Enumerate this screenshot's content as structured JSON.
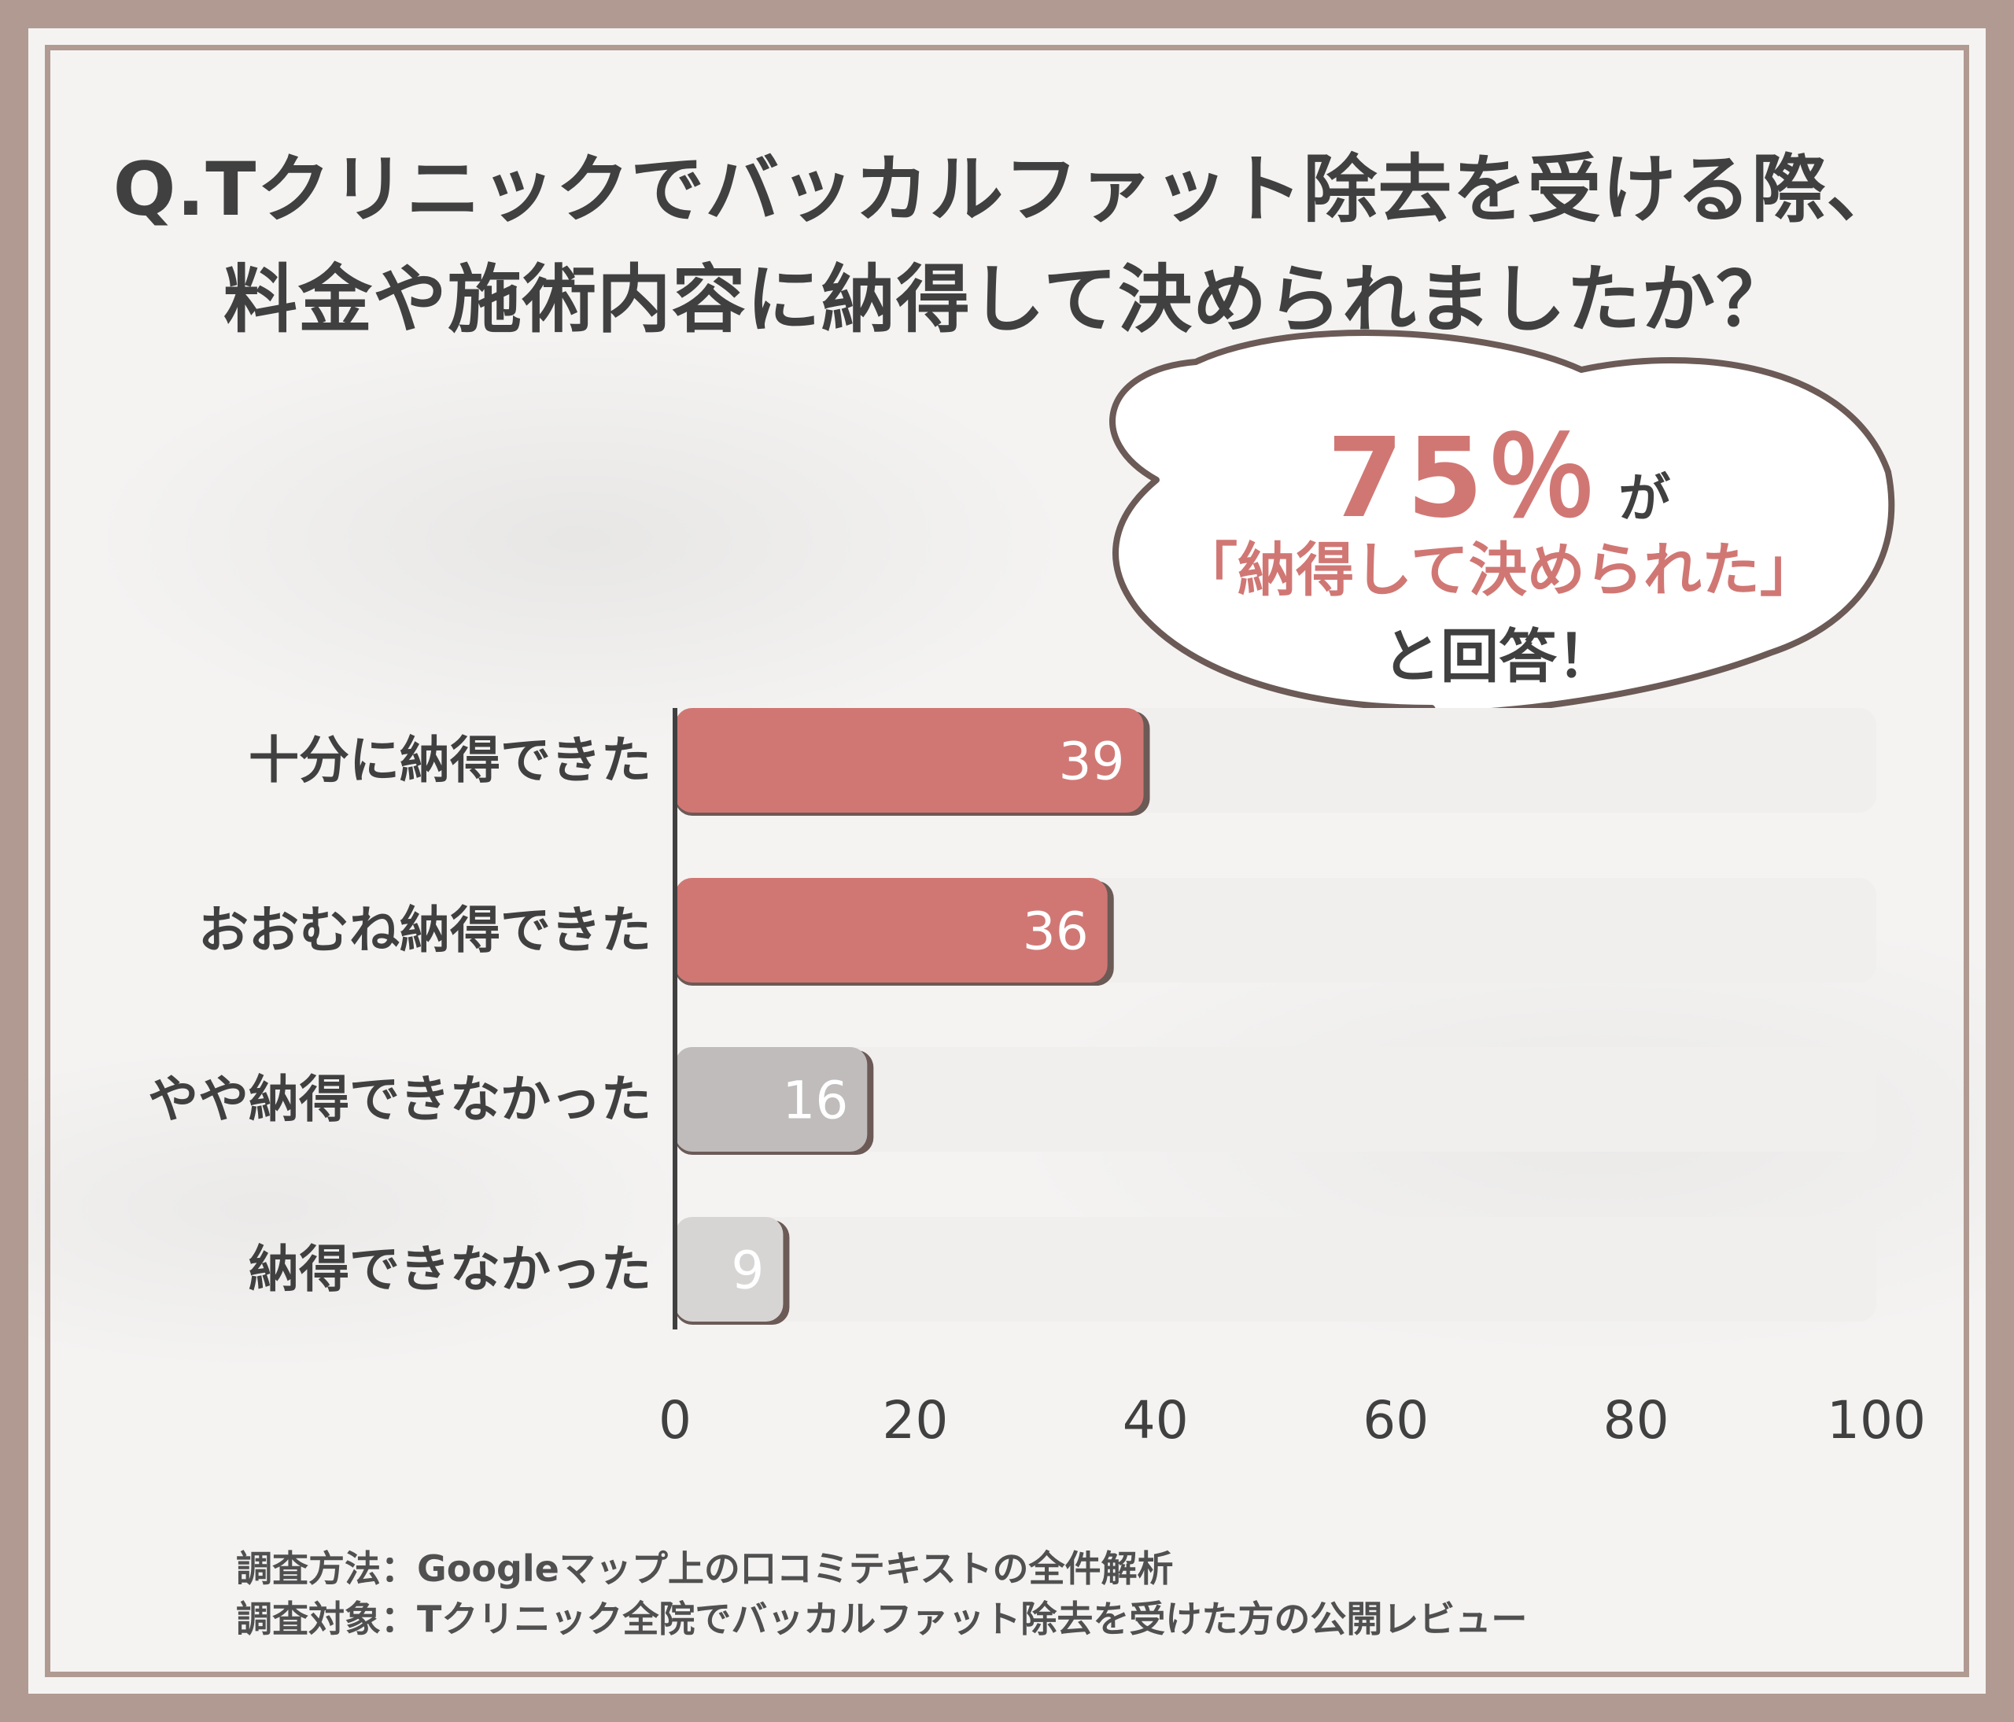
{
  "title": {
    "line1": "Q.Tクリニックでバッカルファット除去を受ける際、",
    "line2": "料金や施術内容に納得して決められましたか？"
  },
  "callout": {
    "percent": "75％",
    "suffix": "が",
    "line2": "「納得して決められた」",
    "line3": "と回答！"
  },
  "chart_data": {
    "type": "bar",
    "orientation": "horizontal",
    "categories": [
      "十分に納得できた",
      "おおむね納得できた",
      "やや納得できなかった",
      "納得できなかった"
    ],
    "values": [
      39,
      36,
      16,
      9
    ],
    "value_labels": [
      "39",
      "36",
      "16",
      "9"
    ],
    "xlim": [
      0,
      100
    ],
    "x_ticks": [
      "0",
      "20",
      "40",
      "60",
      "80",
      "100"
    ],
    "grid": false,
    "colors": {
      "highlight": "#d07774",
      "muted": "#bfbcbb",
      "muted_light": "#d7d5d4",
      "track": "#f1efee"
    },
    "bar_colors": [
      "#d07774",
      "#d07774",
      "#bfbcbb",
      "#d7d5d4"
    ]
  },
  "footer": {
    "line1": "調査方法：Googleマップ上の口コミテキストの全件解析",
    "line2": "調査対象：Tクリニック全院でバッカルファット除去を受けた方の公開レビュー"
  }
}
